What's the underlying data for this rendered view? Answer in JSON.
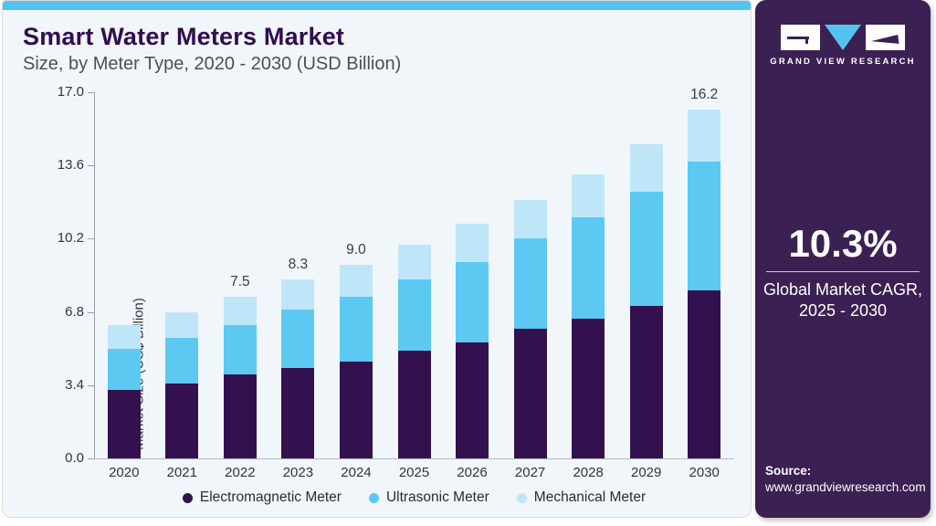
{
  "header": {
    "title": "Smart Water Meters Market",
    "subtitle": "Size, by Meter Type, 2020 - 2030 (USD Billion)"
  },
  "chart_data": {
    "type": "bar",
    "stacked": true,
    "title": "Smart Water Meters Market Size, by Meter Type, 2020 - 2030 (USD Billion)",
    "categories": [
      "2020",
      "2021",
      "2022",
      "2023",
      "2024",
      "2025",
      "2026",
      "2027",
      "2028",
      "2029",
      "2030"
    ],
    "series": [
      {
        "name": "Electromagnetic Meter",
        "color": "#33114e",
        "values": [
          3.2,
          3.5,
          3.9,
          4.2,
          4.5,
          5.0,
          5.4,
          6.0,
          6.5,
          7.1,
          7.8
        ]
      },
      {
        "name": "Ultrasonic Meter",
        "color": "#5bc9f2",
        "values": [
          1.9,
          2.1,
          2.3,
          2.7,
          3.0,
          3.3,
          3.7,
          4.2,
          4.7,
          5.3,
          6.0
        ]
      },
      {
        "name": "Mechanical Meter",
        "color": "#bfe6f8",
        "values": [
          1.1,
          1.2,
          1.3,
          1.4,
          1.5,
          1.6,
          1.8,
          1.8,
          2.0,
          2.2,
          2.4
        ]
      }
    ],
    "bar_total_labels": {
      "2022": "7.5",
      "2023": "8.3",
      "2024": "9.0",
      "2030": "16.2"
    },
    "xlabel": "",
    "ylabel": "Market Size (US$ Billion)",
    "yticks": [
      "17.0",
      "13.6",
      "10.2",
      "6.8",
      "3.4",
      "0.0"
    ],
    "ylim": [
      0,
      17
    ],
    "grid": false,
    "legend_position": "bottom"
  },
  "sidebar": {
    "brand": "GRAND VIEW RESEARCH",
    "cagr_value": "10.3%",
    "cagr_label_line1": "Global Market CAGR,",
    "cagr_label_line2": "2025 - 2030",
    "source_label": "Source:",
    "source_url": "www.grandviewresearch.com"
  },
  "colors": {
    "accent_blue": "#55c3ef",
    "card_bg": "#f0f6fa",
    "title_purple": "#310d50",
    "sidebar_purple": "#3b2053",
    "electromagnetic": "#33114e",
    "ultrasonic": "#5bc9f2",
    "mechanical": "#bfe6f8"
  }
}
